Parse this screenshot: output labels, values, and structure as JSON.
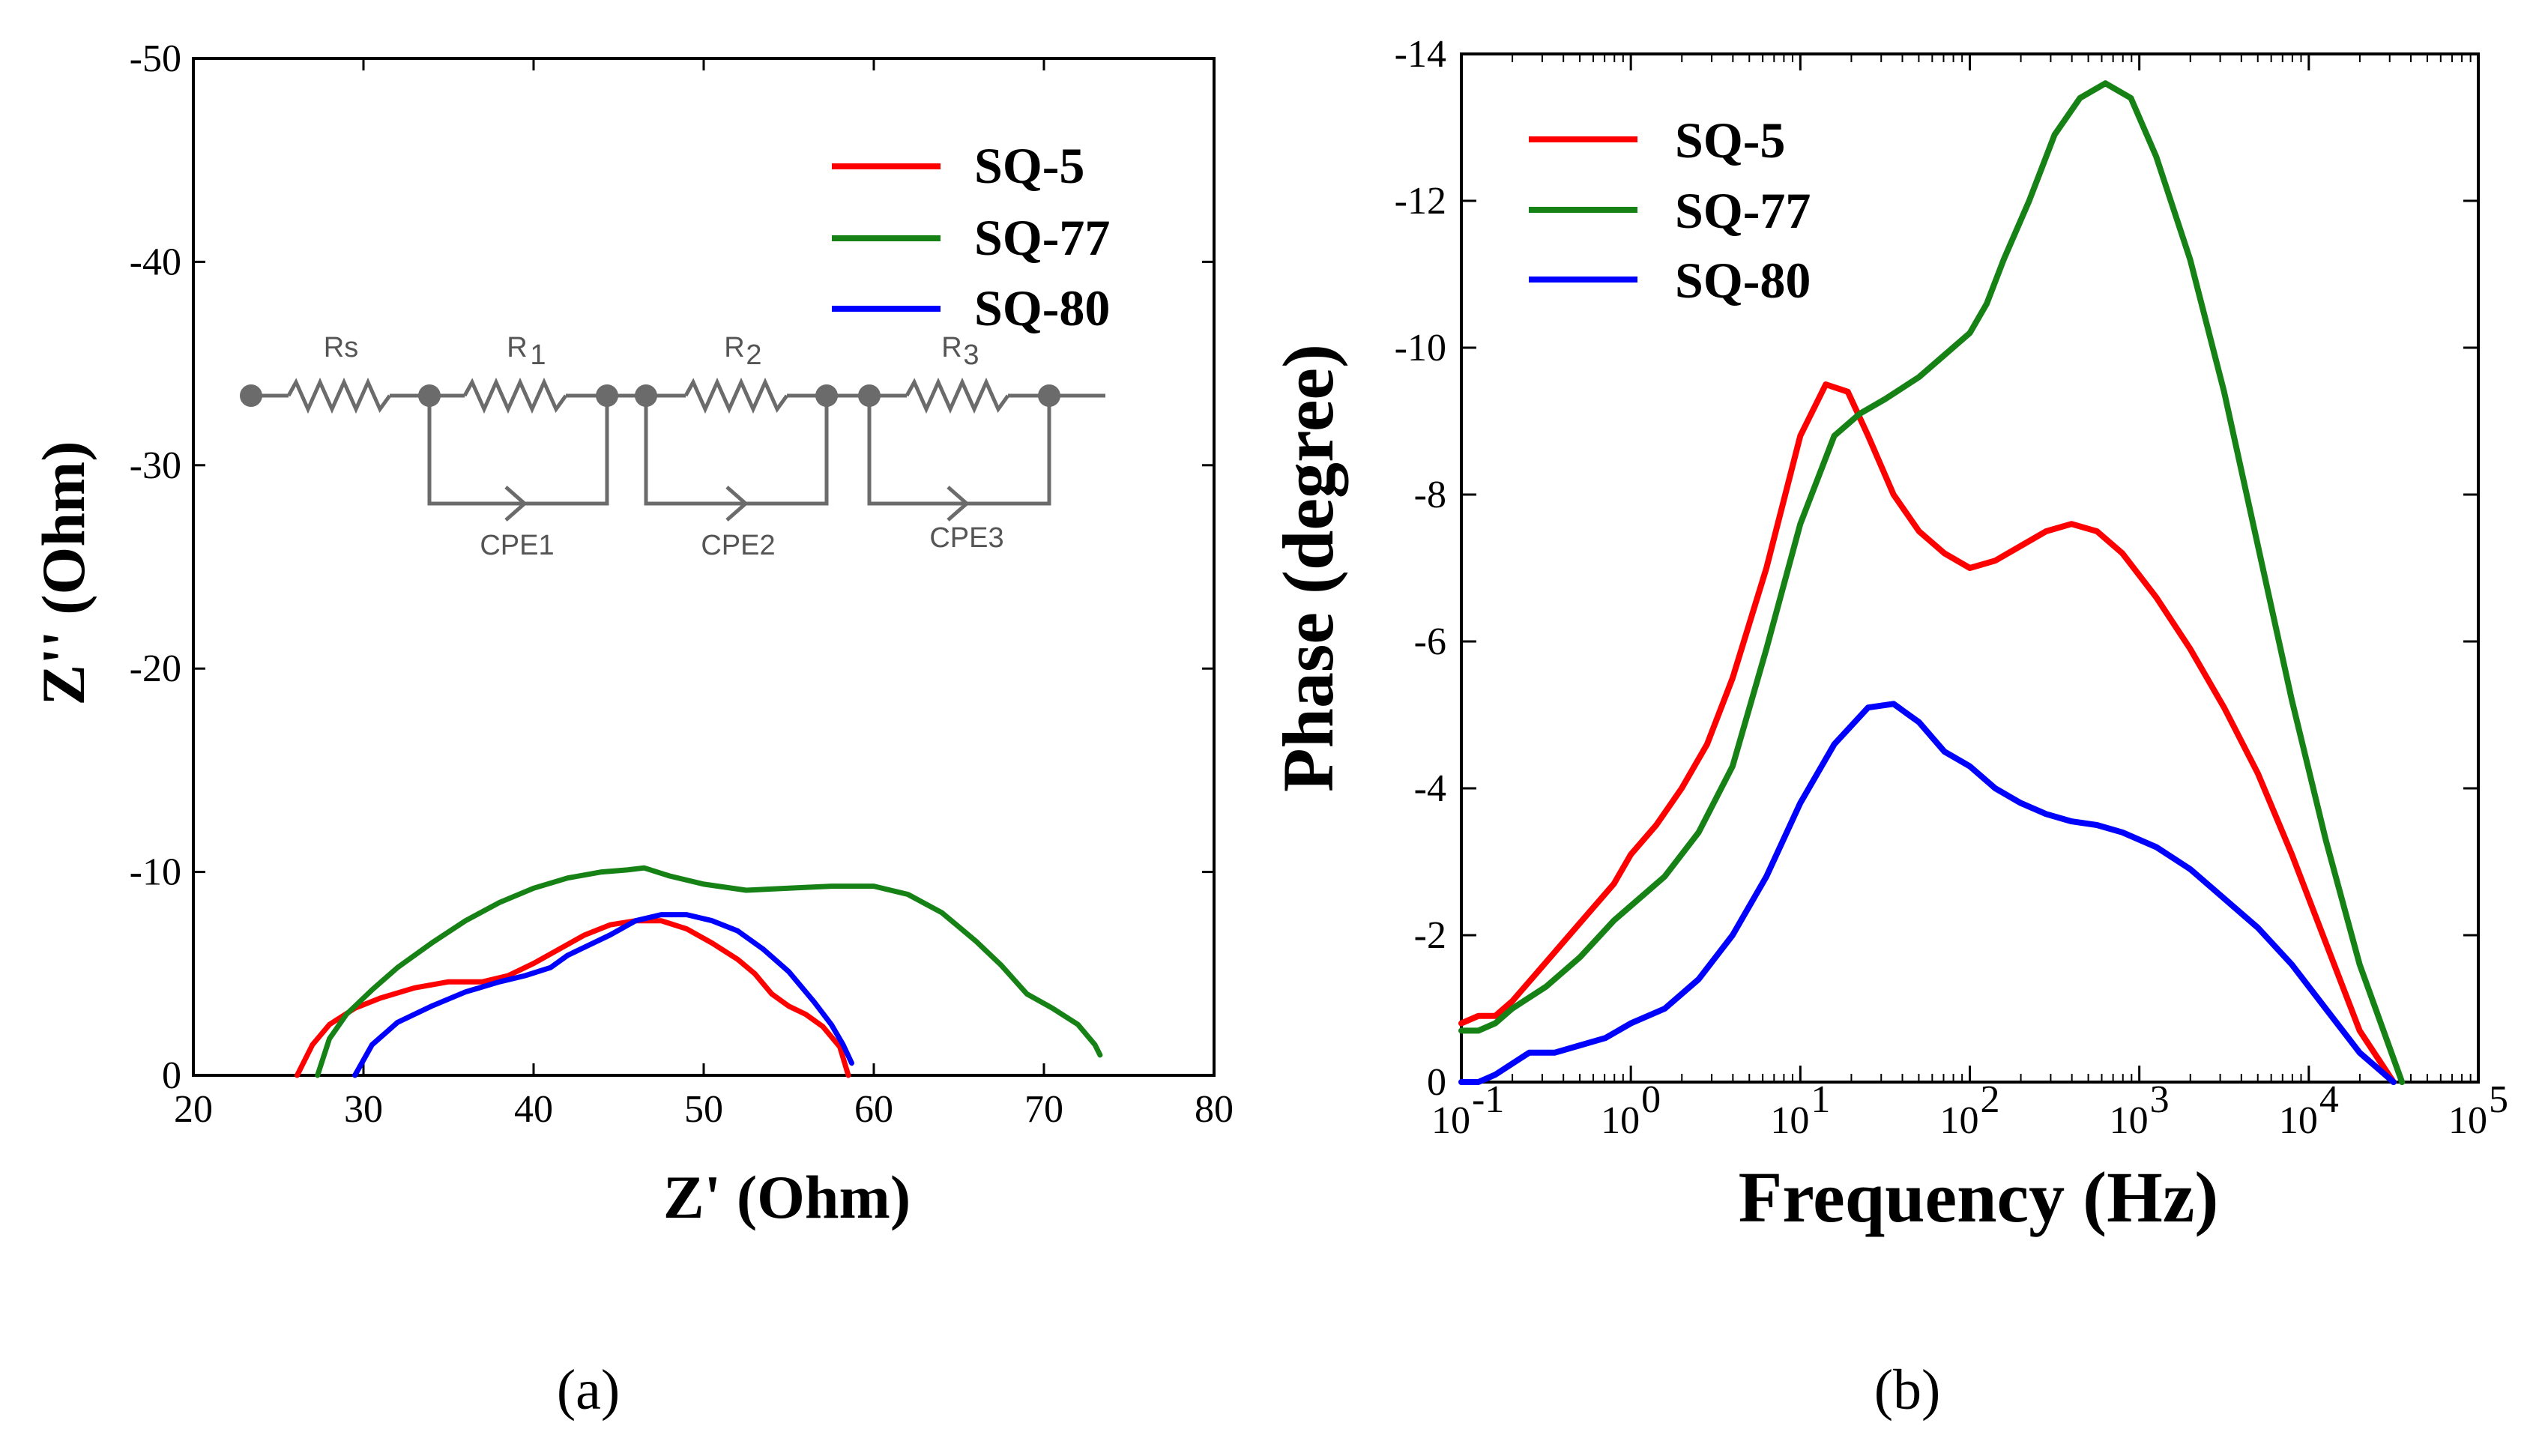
{
  "colors": {
    "SQ-5": "#ff0000",
    "SQ-77": "#168216",
    "SQ-80": "#0000ff"
  },
  "chart_data": [
    {
      "type": "line",
      "panel": "(a)",
      "xlabel": "Z' (Ohm)",
      "ylabel": "Z'' (Ohm)",
      "xlim": [
        20,
        80
      ],
      "ylim": [
        0,
        -50
      ],
      "xticks": [
        "20",
        "30",
        "40",
        "50",
        "60",
        "70",
        "80"
      ],
      "yticks": [
        "0",
        "-10",
        "-20",
        "-30",
        "-40",
        "-50"
      ],
      "legend_position": "top-right",
      "inset_circuit": {
        "labels": [
          "Rs",
          "R",
          "1",
          "R",
          "2",
          "R",
          "3",
          "CPE1",
          "CPE2",
          "CPE3"
        ]
      },
      "series": [
        {
          "name": "SQ-5",
          "color": "#ff0000",
          "x": [
            26.1,
            27,
            28,
            29.5,
            31,
            33,
            35,
            37,
            38.5,
            40,
            41.5,
            43,
            44.5,
            46,
            47.5,
            49,
            50.5,
            52,
            53,
            54,
            55,
            56,
            57,
            58,
            58.5
          ],
          "y": [
            0,
            -1.5,
            -2.5,
            -3.3,
            -3.8,
            -4.3,
            -4.6,
            -4.6,
            -4.9,
            -5.5,
            -6.2,
            -6.9,
            -7.4,
            -7.6,
            -7.6,
            -7.2,
            -6.5,
            -5.7,
            -5,
            -4,
            -3.4,
            -3,
            -2.4,
            -1.4,
            0
          ]
        },
        {
          "name": "SQ-77",
          "color": "#168216",
          "x": [
            27.3,
            28,
            29,
            30.5,
            32,
            34,
            36,
            38,
            40,
            42,
            44,
            45.5,
            46.5,
            48,
            50,
            52.5,
            55,
            57.5,
            60,
            62,
            64,
            66,
            67.5,
            69,
            70.5,
            72,
            73,
            73.3
          ],
          "y": [
            0,
            -1.8,
            -3,
            -4.2,
            -5.3,
            -6.5,
            -7.6,
            -8.5,
            -9.2,
            -9.7,
            -10,
            -10.1,
            -10.2,
            -9.8,
            -9.4,
            -9.1,
            -9.2,
            -9.3,
            -9.3,
            -8.9,
            -8,
            -6.6,
            -5.4,
            -4,
            -3.3,
            -2.5,
            -1.5,
            -1
          ]
        },
        {
          "name": "SQ-80",
          "color": "#0000ff",
          "x": [
            29.5,
            30.5,
            32,
            34,
            36,
            38,
            39.5,
            41,
            42,
            43,
            44.5,
            46,
            47.5,
            49,
            50.5,
            52,
            53.5,
            55,
            56.5,
            57.5,
            58.2,
            58.7
          ],
          "y": [
            0,
            -1.5,
            -2.6,
            -3.4,
            -4.1,
            -4.6,
            -4.9,
            -5.3,
            -5.9,
            -6.3,
            -6.9,
            -7.6,
            -7.9,
            -7.9,
            -7.6,
            -7.1,
            -6.2,
            -5.1,
            -3.6,
            -2.5,
            -1.5,
            -0.6
          ]
        }
      ]
    },
    {
      "type": "line",
      "panel": "(b)",
      "xlabel": "Frequency (Hz)",
      "ylabel": "Phase (degree)",
      "xscale": "log",
      "xlim_exp": [
        -1,
        5
      ],
      "ylim": [
        0,
        -14
      ],
      "xtick_base": "10",
      "xtick_exponents": [
        "-1",
        "0",
        "1",
        "2",
        "3",
        "4",
        "5"
      ],
      "yticks": [
        "0",
        "-2",
        "-4",
        "-6",
        "-8",
        "-10",
        "-12",
        "-14"
      ],
      "legend_position": "top-left",
      "series": [
        {
          "name": "SQ-5",
          "color": "#ff0000",
          "log10_f": [
            -1,
            -0.9,
            -0.8,
            -0.7,
            -0.55,
            -0.4,
            -0.25,
            -0.1,
            0,
            0.15,
            0.3,
            0.45,
            0.6,
            0.8,
            1,
            1.15,
            1.28,
            1.4,
            1.55,
            1.7,
            1.85,
            2,
            2.15,
            2.3,
            2.45,
            2.6,
            2.75,
            2.9,
            3.1,
            3.3,
            3.5,
            3.7,
            3.9,
            4.1,
            4.3,
            4.5
          ],
          "phase": [
            -0.8,
            -0.9,
            -0.9,
            -1.1,
            -1.5,
            -1.9,
            -2.3,
            -2.7,
            -3.1,
            -3.5,
            -4,
            -4.6,
            -5.5,
            -7,
            -8.8,
            -9.5,
            -9.4,
            -8.8,
            -8,
            -7.5,
            -7.2,
            -7,
            -7.1,
            -7.3,
            -7.5,
            -7.6,
            -7.5,
            -7.2,
            -6.6,
            -5.9,
            -5.1,
            -4.2,
            -3.1,
            -1.9,
            -0.7,
            0
          ]
        },
        {
          "name": "SQ-77",
          "color": "#168216",
          "log10_f": [
            -1,
            -0.9,
            -0.8,
            -0.7,
            -0.5,
            -0.3,
            -0.1,
            0,
            0.2,
            0.4,
            0.6,
            0.8,
            1,
            1.2,
            1.35,
            1.5,
            1.7,
            1.85,
            2,
            2.1,
            2.2,
            2.35,
            2.5,
            2.65,
            2.8,
            2.95,
            3.1,
            3.3,
            3.5,
            3.7,
            3.9,
            4.1,
            4.3,
            4.55
          ],
          "phase": [
            -0.7,
            -0.7,
            -0.8,
            -1,
            -1.3,
            -1.7,
            -2.2,
            -2.4,
            -2.8,
            -3.4,
            -4.3,
            -5.9,
            -7.6,
            -8.8,
            -9.1,
            -9.3,
            -9.6,
            -9.9,
            -10.2,
            -10.6,
            -11.2,
            -12,
            -12.9,
            -13.4,
            -13.6,
            -13.4,
            -12.6,
            -11.2,
            -9.4,
            -7.3,
            -5.2,
            -3.3,
            -1.6,
            0
          ]
        },
        {
          "name": "SQ-80",
          "color": "#0000ff",
          "log10_f": [
            -1,
            -0.9,
            -0.8,
            -0.6,
            -0.45,
            -0.3,
            -0.15,
            0,
            0.2,
            0.4,
            0.6,
            0.8,
            1,
            1.2,
            1.4,
            1.55,
            1.7,
            1.85,
            2,
            2.15,
            2.3,
            2.45,
            2.6,
            2.75,
            2.9,
            3.1,
            3.3,
            3.5,
            3.7,
            3.9,
            4.1,
            4.3,
            4.5
          ],
          "phase": [
            0,
            0,
            -0.1,
            -0.4,
            -0.4,
            -0.5,
            -0.6,
            -0.8,
            -1,
            -1.4,
            -2,
            -2.8,
            -3.8,
            -4.6,
            -5.1,
            -5.15,
            -4.9,
            -4.5,
            -4.3,
            -4,
            -3.8,
            -3.65,
            -3.55,
            -3.5,
            -3.4,
            -3.2,
            -2.9,
            -2.5,
            -2.1,
            -1.6,
            -1,
            -0.4,
            0
          ]
        }
      ]
    }
  ]
}
